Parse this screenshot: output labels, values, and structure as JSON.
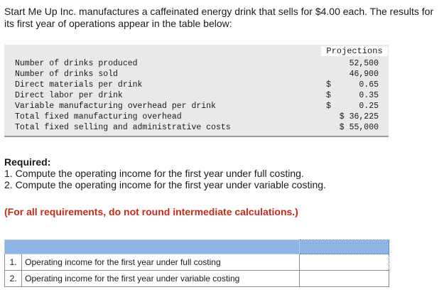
{
  "intro": "Start Me Up Inc. manufactures a caffeinated energy drink that sells for $4.00 each. The results for its first year of operations appear in the table below:",
  "table": {
    "header": "Projections",
    "rows": [
      {
        "label": "Number of drinks produced",
        "cur": "",
        "value": "52,500"
      },
      {
        "label": "Number of drinks sold",
        "cur": "",
        "value": "46,900"
      },
      {
        "label": "Direct materials per drink",
        "cur": "$",
        "value": "0.65"
      },
      {
        "label": "Direct labor per drink",
        "cur": "$",
        "value": "0.35"
      },
      {
        "label": "Variable manufacturing overhead per drink",
        "cur": "$",
        "value": "0.25"
      },
      {
        "label": "Total fixed manufacturing overhead",
        "cur": "",
        "value": "$ 36,225"
      },
      {
        "label": "Total fixed selling and administrative costs",
        "cur": "",
        "value": "$ 55,000"
      }
    ]
  },
  "required": {
    "title": "Required:",
    "items": [
      "1. Compute the operating income for the first year under full costing.",
      "2. Compute the operating income for the first year under variable costing."
    ]
  },
  "note": "(For all requirements, do not round intermediate calculations.)",
  "answers": [
    {
      "num": "1.",
      "label": "Operating income for the first year under full costing",
      "value": ""
    },
    {
      "num": "2.",
      "label": "Operating income for the first year under variable costing",
      "value": ""
    }
  ]
}
